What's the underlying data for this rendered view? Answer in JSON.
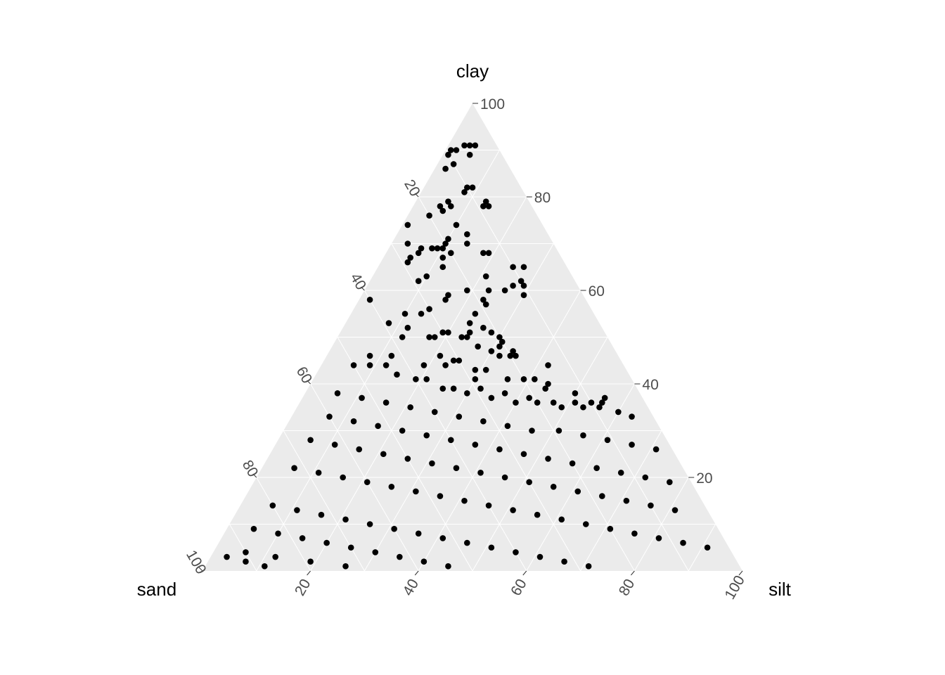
{
  "chart_data": {
    "type": "scatter",
    "coordinate_system": "ternary",
    "title": "",
    "axes": {
      "top": {
        "label": "clay"
      },
      "left": {
        "label": "sand"
      },
      "right": {
        "label": "silt"
      }
    },
    "range": [
      0,
      100
    ],
    "ticks": [
      20,
      40,
      60,
      80,
      100
    ],
    "tick_labels": [
      "20",
      "40",
      "60",
      "80",
      "100"
    ],
    "grid": true,
    "panel_background": "#ebebeb",
    "point_color": "#000000",
    "fields": [
      "sand",
      "silt",
      "clay"
    ],
    "points": [
      [
        6,
        3,
        91
      ],
      [
        5,
        4,
        91
      ],
      [
        4,
        5,
        91
      ],
      [
        9,
        1,
        90
      ],
      [
        8,
        2,
        90
      ],
      [
        10,
        1,
        89
      ],
      [
        12,
        2,
        86
      ],
      [
        10,
        3,
        87
      ],
      [
        6,
        5,
        89
      ],
      [
        10,
        8,
        82
      ],
      [
        9,
        9,
        82
      ],
      [
        11,
        8,
        81
      ],
      [
        15,
        6,
        79
      ],
      [
        15,
        7,
        78
      ],
      [
        8,
        13,
        79
      ],
      [
        9,
        13,
        78
      ],
      [
        8,
        14,
        78
      ],
      [
        20,
        4,
        76
      ],
      [
        17,
        6,
        77
      ],
      [
        17,
        5,
        78
      ],
      [
        25,
        1,
        74
      ],
      [
        15,
        13,
        72
      ],
      [
        16,
        10,
        74
      ],
      [
        16,
        14,
        70
      ],
      [
        27,
        3,
        70
      ],
      [
        23,
        8,
        69
      ],
      [
        22,
        9,
        69
      ],
      [
        20,
        10,
        70
      ],
      [
        19,
        10,
        71
      ],
      [
        21,
        10,
        69
      ],
      [
        20,
        12,
        68
      ],
      [
        28,
        5,
        67
      ],
      [
        26,
        6,
        68
      ],
      [
        29,
        5,
        66
      ],
      [
        25,
        6,
        69
      ],
      [
        22,
        11,
        67
      ],
      [
        14,
        18,
        68
      ],
      [
        13,
        19,
        68
      ],
      [
        10,
        25,
        65
      ],
      [
        8,
        27,
        65
      ],
      [
        10,
        28,
        62
      ],
      [
        29,
        9,
        62
      ],
      [
        27,
        10,
        63
      ],
      [
        23,
        12,
        65
      ],
      [
        16,
        21,
        63
      ],
      [
        25,
        16,
        59
      ],
      [
        19,
        23,
        58
      ],
      [
        17,
        23,
        60
      ],
      [
        14,
        26,
        60
      ],
      [
        12,
        27,
        61
      ],
      [
        10,
        29,
        61
      ],
      [
        11,
        30,
        59
      ],
      [
        40,
        2,
        58
      ],
      [
        21,
        19,
        60
      ],
      [
        22,
        23,
        55
      ],
      [
        26,
        16,
        58
      ],
      [
        19,
        24,
        57
      ],
      [
        35,
        10,
        55
      ],
      [
        32,
        13,
        55
      ],
      [
        30,
        14,
        56
      ],
      [
        32,
        18,
        50
      ],
      [
        30,
        19,
        51
      ],
      [
        21,
        28,
        51
      ],
      [
        20,
        31,
        49
      ],
      [
        22,
        32,
        46
      ],
      [
        39,
        8,
        53
      ],
      [
        36,
        12,
        52
      ],
      [
        29,
        20,
        51
      ],
      [
        27,
        23,
        50
      ],
      [
        25,
        27,
        48
      ],
      [
        23,
        30,
        47
      ],
      [
        19,
        34,
        47
      ],
      [
        19,
        35,
        46
      ],
      [
        38,
        12,
        50
      ],
      [
        33,
        17,
        50
      ],
      [
        30,
        19,
        51
      ],
      [
        25,
        24,
        51
      ],
      [
        24,
        23,
        53
      ],
      [
        26,
        24,
        50
      ],
      [
        20,
        30,
        50
      ],
      [
        20,
        34,
        46
      ],
      [
        14,
        42,
        44
      ],
      [
        21,
        31,
        48
      ],
      [
        22,
        26,
        52
      ],
      [
        33,
        21,
        46
      ],
      [
        31,
        24,
        45
      ],
      [
        30,
        25,
        45
      ],
      [
        29,
        30,
        41
      ],
      [
        23,
        36,
        41
      ],
      [
        20,
        39,
        41
      ],
      [
        18,
        41,
        41
      ],
      [
        17,
        44,
        39
      ],
      [
        16,
        44,
        40
      ],
      [
        12,
        50,
        38
      ],
      [
        12,
        53,
        35
      ],
      [
        10,
        54,
        36
      ],
      [
        8,
        56,
        36
      ],
      [
        7,
        56,
        37
      ],
      [
        46,
        8,
        46
      ],
      [
        42,
        12,
        46
      ],
      [
        37,
        19,
        44
      ],
      [
        33,
        23,
        44
      ],
      [
        28,
        29,
        43
      ],
      [
        26,
        31,
        43
      ],
      [
        44,
        12,
        44
      ],
      [
        40,
        19,
        41
      ],
      [
        36,
        25,
        39
      ],
      [
        32,
        30,
        38
      ],
      [
        28,
        35,
        37
      ],
      [
        24,
        40,
        36
      ],
      [
        20,
        44,
        36
      ],
      [
        16,
        49,
        35
      ],
      [
        50,
        6,
        44
      ],
      [
        47,
        9,
        44
      ],
      [
        43,
        15,
        42
      ],
      [
        38,
        21,
        41
      ],
      [
        34,
        27,
        39
      ],
      [
        29,
        32,
        39
      ],
      [
        25,
        37,
        38
      ],
      [
        21,
        42,
        37
      ],
      [
        17,
        47,
        36
      ],
      [
        13,
        51,
        36
      ],
      [
        9,
        56,
        35
      ],
      [
        6,
        60,
        34
      ],
      [
        4,
        63,
        33
      ],
      [
        56,
        6,
        38
      ],
      [
        52,
        11,
        37
      ],
      [
        48,
        16,
        36
      ],
      [
        44,
        21,
        35
      ],
      [
        40,
        26,
        34
      ],
      [
        36,
        31,
        33
      ],
      [
        32,
        36,
        32
      ],
      [
        28,
        41,
        31
      ],
      [
        24,
        46,
        30
      ],
      [
        19,
        51,
        30
      ],
      [
        15,
        56,
        29
      ],
      [
        11,
        61,
        28
      ],
      [
        7,
        66,
        27
      ],
      [
        3,
        71,
        26
      ],
      [
        60,
        7,
        33
      ],
      [
        56,
        12,
        32
      ],
      [
        52,
        17,
        31
      ],
      [
        48,
        22,
        30
      ],
      [
        44,
        27,
        29
      ],
      [
        40,
        32,
        28
      ],
      [
        36,
        37,
        27
      ],
      [
        32,
        42,
        26
      ],
      [
        28,
        47,
        25
      ],
      [
        24,
        52,
        24
      ],
      [
        20,
        57,
        23
      ],
      [
        16,
        62,
        22
      ],
      [
        12,
        67,
        21
      ],
      [
        8,
        72,
        20
      ],
      [
        4,
        77,
        19
      ],
      [
        66,
        6,
        28
      ],
      [
        62,
        11,
        27
      ],
      [
        58,
        16,
        26
      ],
      [
        54,
        21,
        25
      ],
      [
        50,
        26,
        24
      ],
      [
        46,
        31,
        23
      ],
      [
        42,
        36,
        22
      ],
      [
        38,
        41,
        21
      ],
      [
        34,
        46,
        20
      ],
      [
        30,
        51,
        19
      ],
      [
        26,
        56,
        18
      ],
      [
        22,
        61,
        17
      ],
      [
        18,
        66,
        16
      ],
      [
        14,
        71,
        15
      ],
      [
        10,
        76,
        14
      ],
      [
        6,
        81,
        13
      ],
      [
        72,
        6,
        22
      ],
      [
        68,
        11,
        21
      ],
      [
        64,
        16,
        20
      ],
      [
        60,
        21,
        19
      ],
      [
        56,
        26,
        18
      ],
      [
        52,
        31,
        17
      ],
      [
        48,
        36,
        16
      ],
      [
        44,
        41,
        15
      ],
      [
        40,
        46,
        14
      ],
      [
        36,
        51,
        13
      ],
      [
        32,
        56,
        12
      ],
      [
        28,
        61,
        11
      ],
      [
        24,
        66,
        10
      ],
      [
        20,
        71,
        9
      ],
      [
        16,
        76,
        8
      ],
      [
        12,
        81,
        7
      ],
      [
        8,
        86,
        6
      ],
      [
        4,
        91,
        5
      ],
      [
        80,
        6,
        14
      ],
      [
        76,
        11,
        13
      ],
      [
        72,
        16,
        12
      ],
      [
        68,
        21,
        11
      ],
      [
        64,
        26,
        10
      ],
      [
        60,
        31,
        9
      ],
      [
        56,
        36,
        8
      ],
      [
        52,
        41,
        7
      ],
      [
        48,
        46,
        6
      ],
      [
        44,
        51,
        5
      ],
      [
        40,
        56,
        4
      ],
      [
        36,
        61,
        3
      ],
      [
        32,
        66,
        2
      ],
      [
        28,
        71,
        1
      ],
      [
        86,
        5,
        9
      ],
      [
        82,
        10,
        8
      ],
      [
        78,
        15,
        7
      ],
      [
        74,
        20,
        6
      ],
      [
        70,
        25,
        5
      ],
      [
        66,
        30,
        4
      ],
      [
        62,
        35,
        3
      ],
      [
        58,
        40,
        2
      ],
      [
        54,
        45,
        1
      ],
      [
        90,
        6,
        4
      ],
      [
        85,
        12,
        3
      ],
      [
        79,
        19,
        2
      ],
      [
        73,
        26,
        1
      ],
      [
        94,
        3,
        3
      ],
      [
        91,
        7,
        2
      ],
      [
        88,
        11,
        1
      ]
    ]
  }
}
